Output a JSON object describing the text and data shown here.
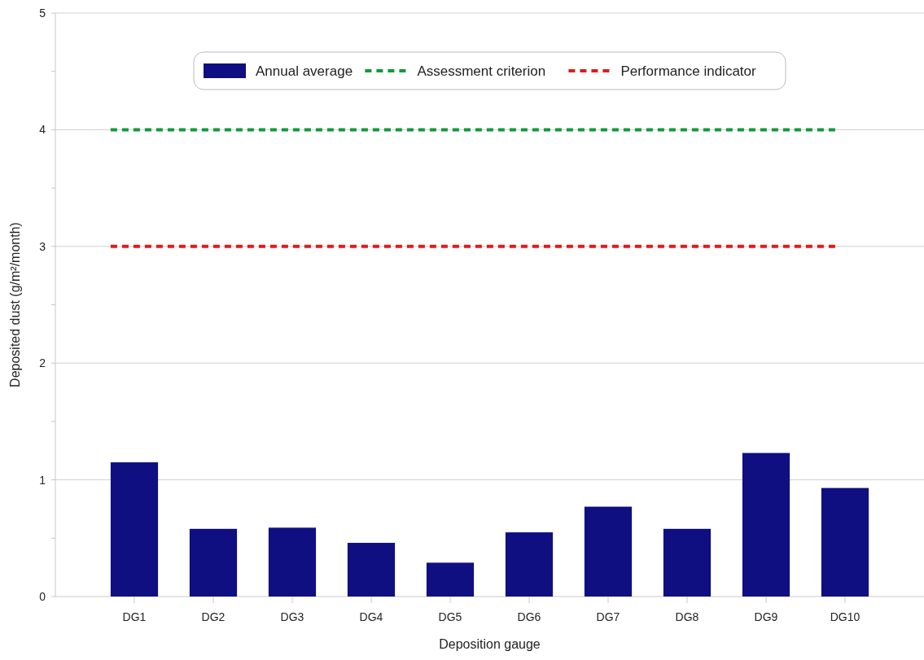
{
  "chart_data": {
    "type": "bar",
    "xlabel": "Deposition gauge",
    "ylabel": "Deposited dust (g/m²/month)",
    "categories": [
      "DG1",
      "DG2",
      "DG3",
      "DG4",
      "DG5",
      "DG6",
      "DG7",
      "DG8",
      "DG9",
      "DG10"
    ],
    "series": [
      {
        "name": "Annual average",
        "color": "#0f0f82",
        "values": [
          1.15,
          0.58,
          0.59,
          0.46,
          0.29,
          0.55,
          0.77,
          0.58,
          1.23,
          0.93
        ]
      }
    ],
    "ylim": [
      0,
      5
    ],
    "yticks": [
      0,
      {
        "value": 0.5,
        "label": null
      },
      1,
      {
        "value": 1.5,
        "label": null
      },
      2,
      {
        "value": 2.5,
        "label": null
      },
      3,
      {
        "value": 3.5,
        "label": null
      },
      4,
      {
        "value": 4.5,
        "label": null
      },
      5
    ],
    "ref_lines": [
      {
        "axis": "y",
        "value": 4,
        "label": "Assessment criterion",
        "color": "#119a3c",
        "line_style": "dashed"
      },
      {
        "axis": "y",
        "value": 3,
        "label": "Performance indicator",
        "color": "#e01b1b",
        "line_style": "dashed"
      }
    ],
    "grid": "y",
    "legend": "top"
  }
}
